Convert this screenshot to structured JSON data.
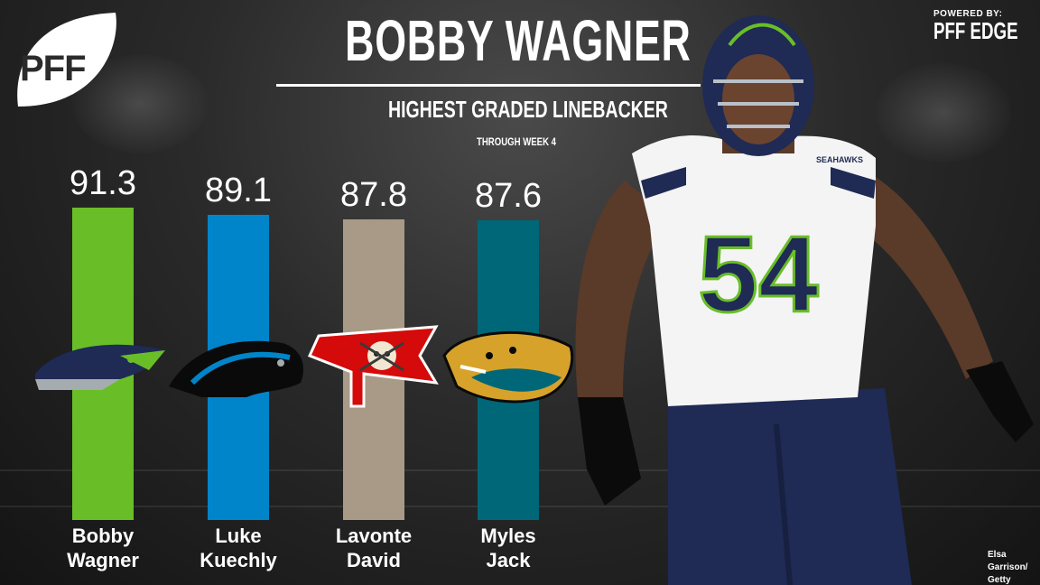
{
  "header": {
    "logo_text": "PFF",
    "powered_by": "POWERED BY:",
    "brand": "PFF EDGE",
    "title": "BOBBY WAGNER",
    "subtitle": "HIGHEST GRADED LINEBACKER",
    "through": "THROUGH WEEK 4"
  },
  "chart_data": {
    "type": "bar",
    "categories": [
      "Bobby Wagner",
      "Luke Kuechly",
      "Lavonte David",
      "Myles Jack"
    ],
    "categories_lines": [
      [
        "Bobby",
        "Wagner"
      ],
      [
        "Luke",
        "Kuechly"
      ],
      [
        "Lavonte",
        "David"
      ],
      [
        "Myles",
        "Jack"
      ]
    ],
    "values": [
      91.3,
      89.1,
      87.8,
      87.6
    ],
    "value_labels": [
      "91.3",
      "89.1",
      "87.8",
      "87.6"
    ],
    "colors": [
      "#69be28",
      "#0085ca",
      "#a89a86",
      "#006778"
    ],
    "teams": [
      "seahawks-logo-icon",
      "panthers-logo-icon",
      "buccaneers-logo-icon",
      "jaguars-logo-icon"
    ],
    "title": "BOBBY WAGNER",
    "subtitle": "HIGHEST GRADED LINEBACKER",
    "xlabel": "",
    "ylabel": "",
    "grid": false
  },
  "player": {
    "jersey_number": "54",
    "jersey_wordmark": "SEAHAWKS"
  },
  "credit": {
    "line1": "Elsa Garrison/",
    "line2": "Getty Images"
  }
}
